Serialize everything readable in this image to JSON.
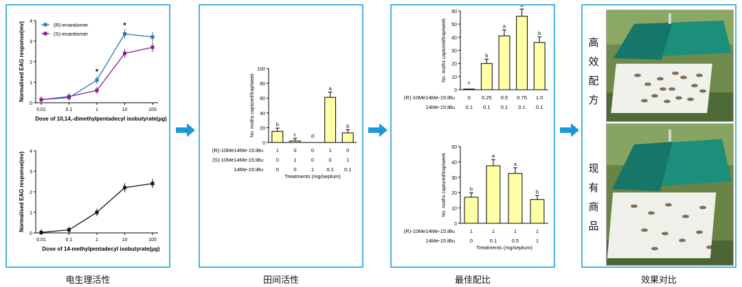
{
  "captions": {
    "panel1": "电生理活性",
    "panel2": "田间活性",
    "panel3": "最佳配比",
    "panel4": "效果对比"
  },
  "photo_labels": {
    "top": [
      "高",
      "效",
      "配",
      "方"
    ],
    "bottom": [
      "现",
      "有",
      "商",
      "品"
    ]
  },
  "chart_data": [
    {
      "type": "line",
      "ylabel": "Normalised EAG response(mv)",
      "xlabel": "Dose of 10,14,-dimethylpentadecyl isobutyrate(μg)",
      "x": [
        "0.01",
        "0.1",
        "1",
        "10",
        "100"
      ],
      "yticks": [
        "0",
        "1",
        "2",
        "3",
        "4"
      ],
      "ylim": [
        0,
        4
      ],
      "series": [
        {
          "name": "(R)-enantiomer",
          "values": [
            0.15,
            0.25,
            1.1,
            3.35,
            3.2
          ],
          "color": "#2a7ab8"
        },
        {
          "name": "(S)-enantiomer",
          "values": [
            0.15,
            0.3,
            0.6,
            2.4,
            2.7
          ],
          "color": "#8b1a8b"
        }
      ],
      "annotations": [
        "*",
        "*"
      ],
      "legend": "top-left"
    },
    {
      "type": "line",
      "ylabel": "Normalised EAG response(mv)",
      "xlabel": "Dose of 14-methylpentadecyl isobutyrate(μg)",
      "x": [
        "0.01",
        "0.1",
        "1",
        "10",
        "100"
      ],
      "yticks": [
        "0",
        "1",
        "2",
        "3",
        "4"
      ],
      "ylim": [
        0,
        4
      ],
      "series": [
        {
          "values": [
            0.02,
            0.15,
            1.0,
            2.2,
            2.4
          ],
          "color": "#111111"
        }
      ]
    },
    {
      "type": "bar",
      "ylabel": "No. moths captured/trap/week",
      "xlabel": "Treatments (mg/septum)",
      "yticks": [
        "0",
        "20",
        "40",
        "60",
        "80",
        "100"
      ],
      "ylim": [
        0,
        100
      ],
      "values": [
        15,
        2,
        0,
        61,
        13
      ],
      "letters": [
        "b",
        "c",
        "d",
        "a",
        "b"
      ],
      "table": [
        {
          "label": "(R)-10Me14Me-15:iBu",
          "values": [
            "1",
            "0",
            "0",
            "1",
            "0"
          ]
        },
        {
          "label": "(S)-10Me14Me-15:iBu",
          "values": [
            "0",
            "1",
            "0",
            "0",
            "1"
          ]
        },
        {
          "label": "14Me-15:iBu",
          "values": [
            "0",
            "0",
            "1",
            "0.1",
            "0.1"
          ]
        }
      ]
    },
    {
      "type": "bar",
      "ylabel": "No. moths captured/trap/week",
      "yticks": [
        "0",
        "10",
        "20",
        "30",
        "40",
        "50",
        "60"
      ],
      "ylim": [
        0,
        60
      ],
      "values": [
        0.5,
        20,
        41,
        56,
        36
      ],
      "letters": [
        "c",
        "b",
        "a",
        "a",
        "b"
      ],
      "table": [
        {
          "label": "(R)-10Me14Me-15:iBu",
          "values": [
            "0",
            "0.25",
            "0.5",
            "0.75",
            "1.0"
          ]
        },
        {
          "label": "14Me-15:iBu",
          "values": [
            "0.1",
            "0.1",
            "0.1",
            "0.1",
            "0.1"
          ]
        }
      ]
    },
    {
      "type": "bar",
      "ylabel": "No. moths captured/trap/week",
      "xlabel": "Treatments (mg/septum)",
      "yticks": [
        "0",
        "10",
        "20",
        "30",
        "40",
        "50"
      ],
      "ylim": [
        0,
        50
      ],
      "values": [
        17,
        37.5,
        32.5,
        15.5
      ],
      "letters": [
        "b",
        "a",
        "a",
        "b"
      ],
      "table": [
        {
          "label": "(R)-10Me14Me-15:iBu",
          "values": [
            "1",
            "1",
            "1",
            "1"
          ]
        },
        {
          "label": "14Me-15:iBu",
          "values": [
            "0",
            "0.1",
            "0.5",
            "1"
          ]
        }
      ]
    }
  ]
}
